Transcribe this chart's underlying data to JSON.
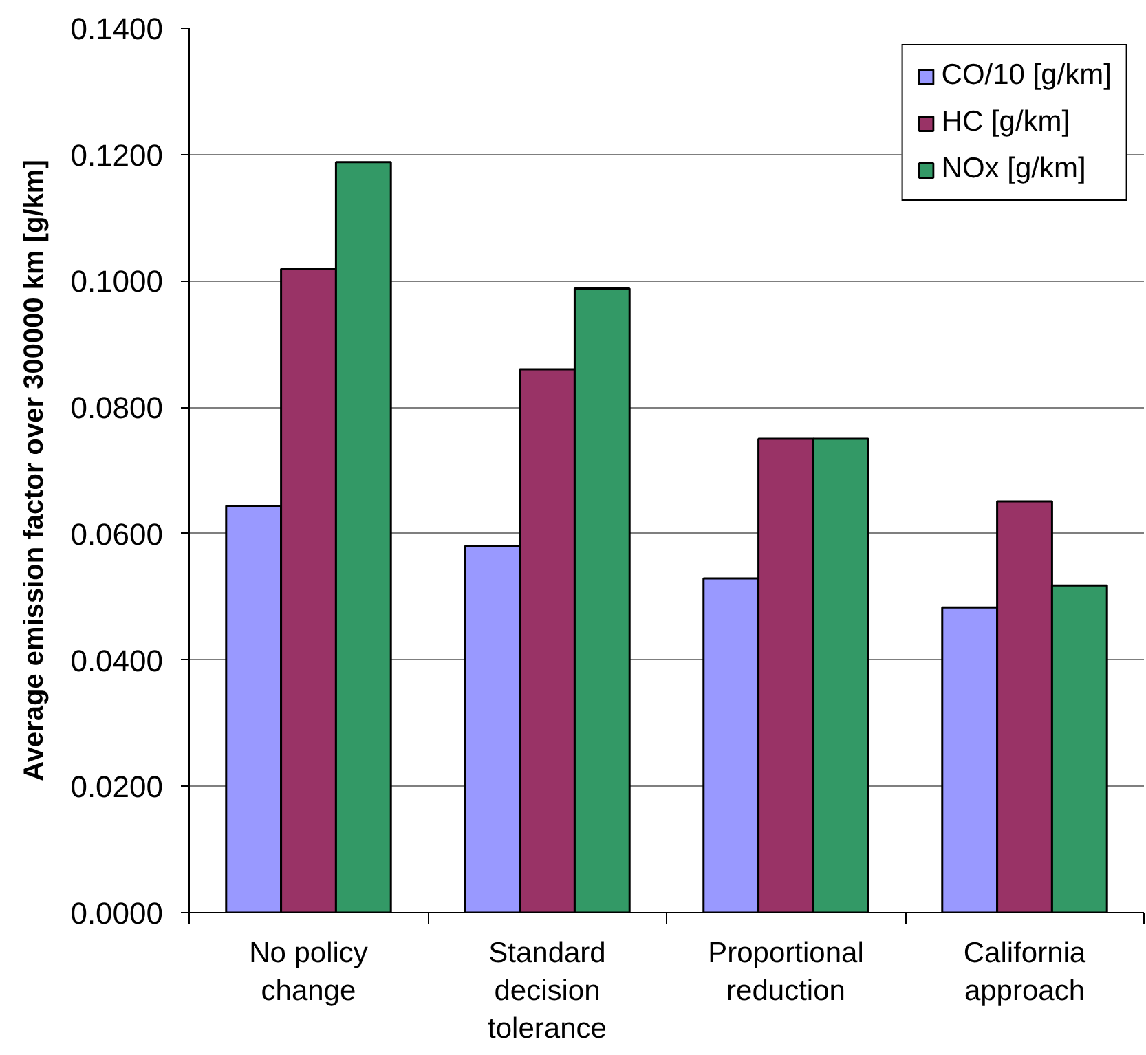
{
  "chart_data": {
    "type": "bar",
    "categories": [
      "No policy change",
      "Standard decision tolerance",
      "Proportional reduction",
      "California approach"
    ],
    "series": [
      {
        "name": "CO/10 [g/km]",
        "color": "#9999ff",
        "values": [
          0.0644,
          0.058,
          0.0529,
          0.0483
        ]
      },
      {
        "name": "HC [g/km]",
        "color": "#993366",
        "values": [
          0.1019,
          0.086,
          0.075,
          0.0651
        ]
      },
      {
        "name": "NOx [g/km]",
        "color": "#339966",
        "values": [
          0.1188,
          0.0988,
          0.075,
          0.0518
        ]
      }
    ],
    "ylabel": "Average emission factor over 300000 km [g/km]",
    "ylim": [
      0,
      0.14
    ],
    "yticks": [
      {
        "value": 0,
        "label": "0.0000"
      },
      {
        "value": 0.02,
        "label": "0.0200"
      },
      {
        "value": 0.04,
        "label": "0.0400"
      },
      {
        "value": 0.06,
        "label": "0.0600"
      },
      {
        "value": 0.08,
        "label": "0.0800"
      },
      {
        "value": 0.1,
        "label": "0.1000"
      },
      {
        "value": 0.12,
        "label": "0.1200"
      },
      {
        "value": 0.14,
        "label": "0.1400"
      }
    ],
    "grid": "y",
    "legend": "top right"
  }
}
